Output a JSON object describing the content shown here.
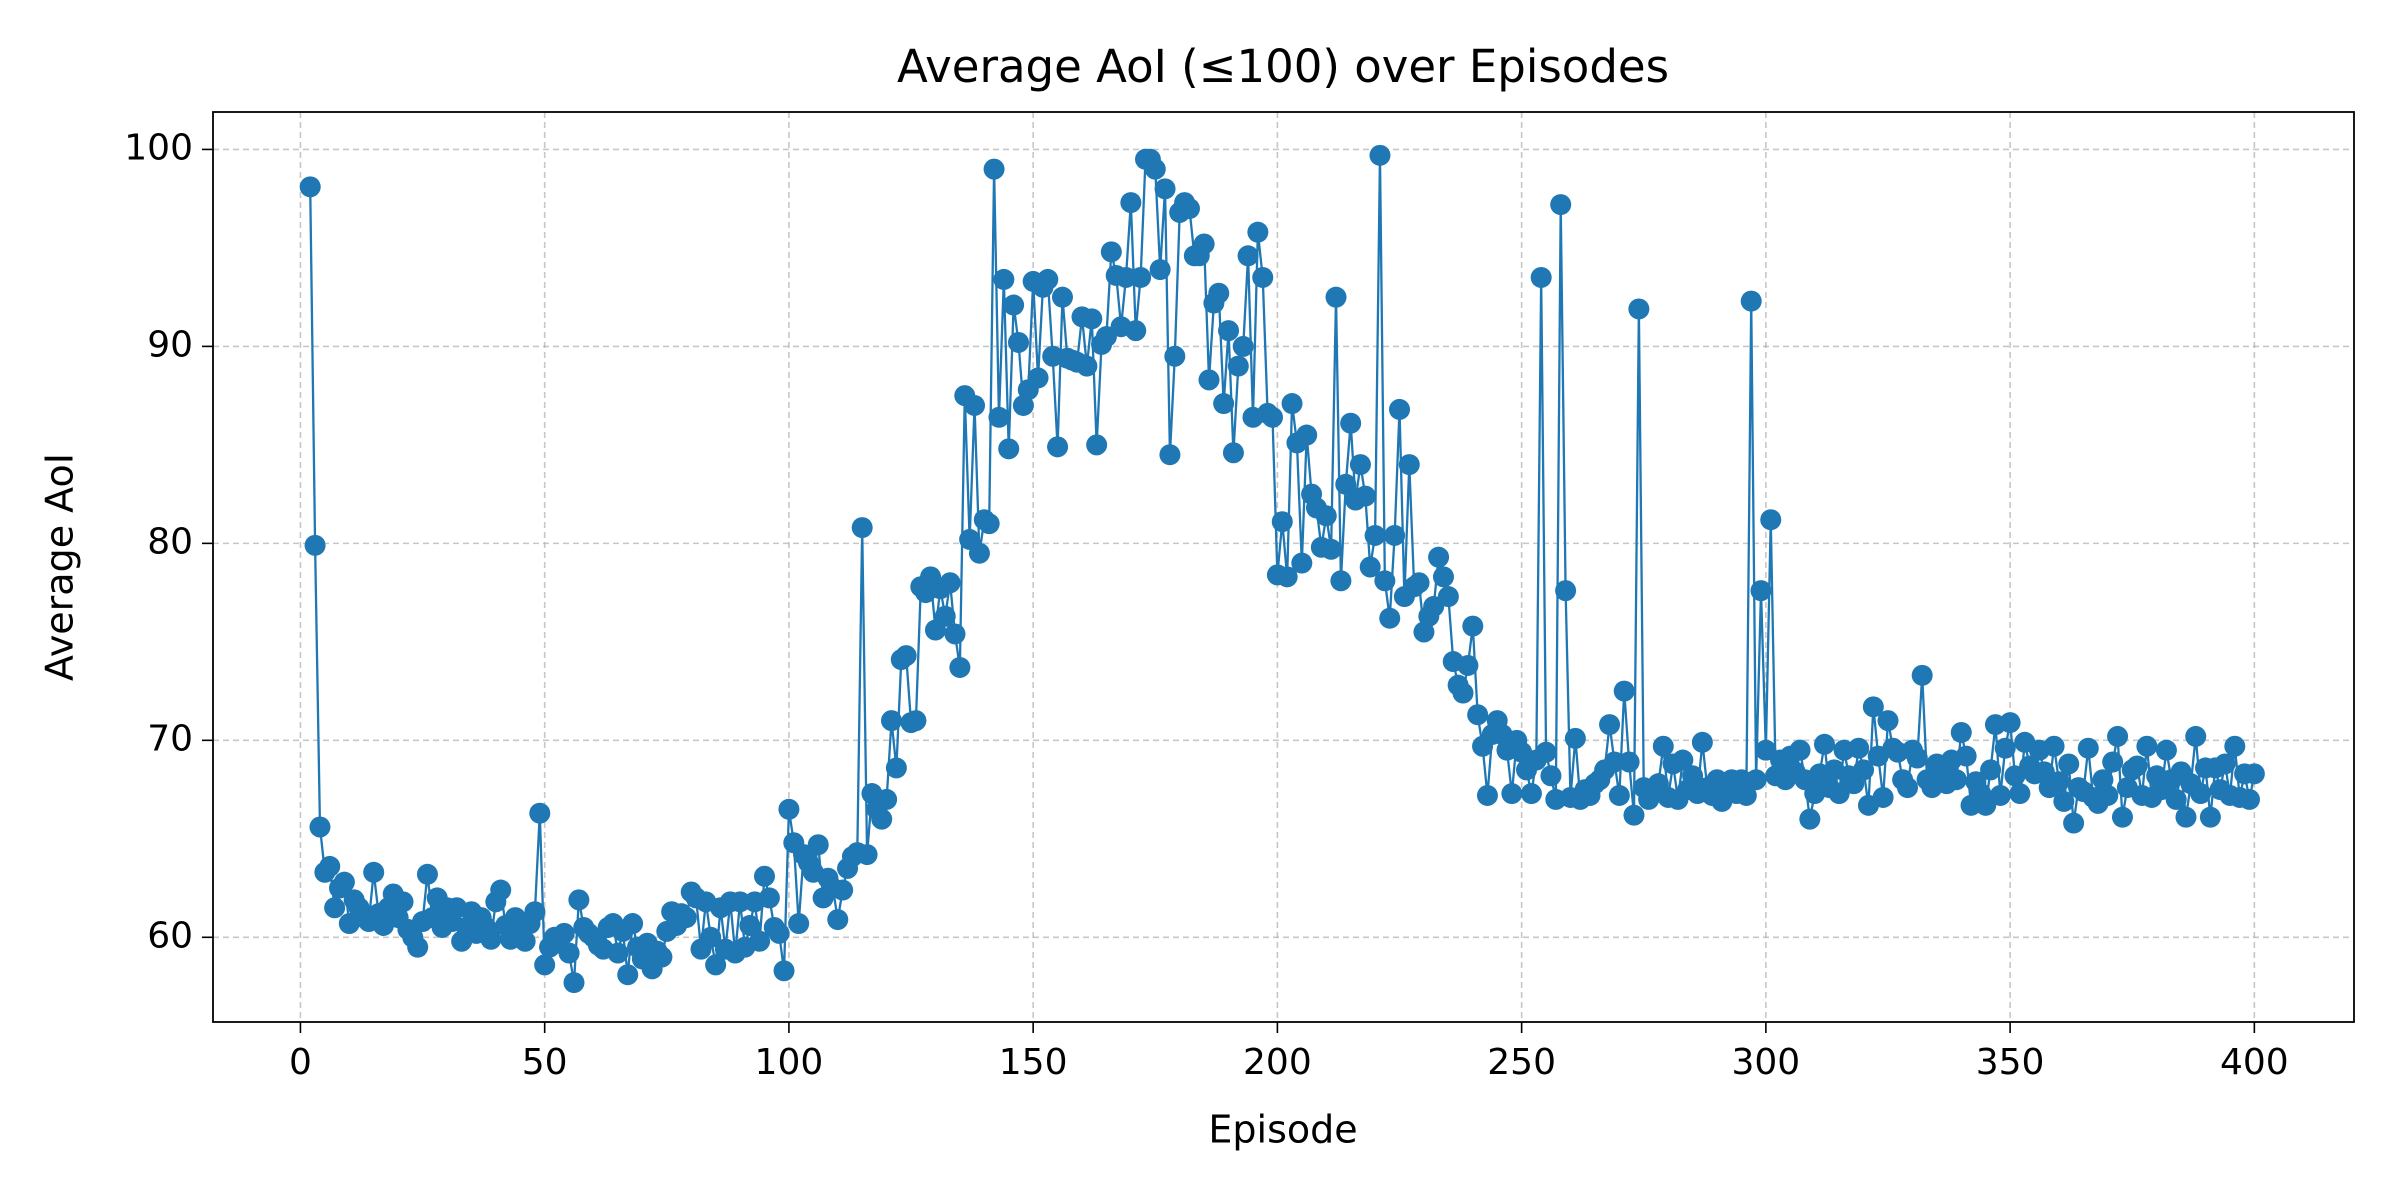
{
  "chart_data": {
    "type": "line",
    "title": "Average AoI (≤100) over Episodes",
    "xlabel": "Episode",
    "ylabel": "Average AoI",
    "color": "#1f77b4",
    "marker": "o",
    "grid": true,
    "xlim": [
      -17.9,
      420.4
    ],
    "xticks": [
      0,
      50,
      100,
      150,
      200,
      250,
      300,
      350,
      400
    ],
    "ylim": [
      55.7,
      101.9
    ],
    "yticks": [
      60,
      70,
      80,
      90,
      100
    ],
    "x": [
      2,
      3,
      4,
      5,
      6,
      7,
      8,
      9,
      10,
      11,
      12,
      13,
      14,
      15,
      16,
      17,
      18,
      19,
      20,
      21,
      22,
      23,
      24,
      25,
      26,
      27,
      28,
      29,
      30,
      31,
      32,
      33,
      34,
      35,
      36,
      37,
      38,
      39,
      40,
      41,
      42,
      43,
      44,
      45,
      46,
      47,
      48,
      49,
      50,
      51,
      52,
      53,
      54,
      55,
      56,
      57,
      58,
      59,
      60,
      61,
      62,
      63,
      64,
      65,
      66,
      67,
      68,
      69,
      70,
      71,
      72,
      73,
      74,
      75,
      76,
      77,
      78,
      79,
      80,
      81,
      82,
      83,
      84,
      85,
      86,
      87,
      88,
      89,
      90,
      91,
      92,
      93,
      94,
      95,
      96,
      97,
      98,
      99,
      100,
      101,
      102,
      103,
      104,
      105,
      106,
      107,
      108,
      109,
      110,
      111,
      112,
      113,
      114,
      115,
      116,
      117,
      118,
      119,
      120,
      121,
      122,
      123,
      124,
      125,
      126,
      127,
      128,
      129,
      130,
      131,
      132,
      133,
      134,
      135,
      136,
      137,
      138,
      139,
      140,
      141,
      142,
      143,
      144,
      145,
      146,
      147,
      148,
      149,
      150,
      151,
      152,
      153,
      154,
      155,
      156,
      157,
      158,
      159,
      160,
      161,
      162,
      163,
      164,
      165,
      166,
      167,
      168,
      169,
      170,
      171,
      172,
      173,
      174,
      175,
      176,
      177,
      178,
      179,
      180,
      181,
      182,
      183,
      184,
      185,
      186,
      187,
      188,
      189,
      190,
      191,
      192,
      193,
      194,
      195,
      196,
      197,
      198,
      199,
      200,
      201,
      202,
      203,
      204,
      205,
      206,
      207,
      208,
      209,
      210,
      211,
      212,
      213,
      214,
      215,
      216,
      217,
      218,
      219,
      220,
      221,
      222,
      223,
      224,
      225,
      226,
      227,
      228,
      229,
      230,
      231,
      232,
      233,
      234,
      235,
      236,
      237,
      238,
      239,
      240,
      241,
      242,
      243,
      244,
      245,
      246,
      247,
      248,
      249,
      250,
      251,
      252,
      253,
      254,
      255,
      256,
      257,
      258,
      259,
      260,
      261,
      262,
      263,
      264,
      265,
      266,
      267,
      268,
      269,
      270,
      271,
      272,
      273,
      274,
      275,
      276,
      277,
      278,
      279,
      280,
      281,
      282,
      283,
      284,
      285,
      286,
      287,
      288,
      289,
      290,
      291,
      292,
      293,
      294,
      295,
      296,
      297,
      298,
      299,
      300,
      301,
      302,
      303,
      304,
      305,
      306,
      307,
      308,
      309,
      310,
      311,
      312,
      313,
      314,
      315,
      316,
      317,
      318,
      319,
      320,
      321,
      322,
      323,
      324,
      325,
      326,
      327,
      328,
      329,
      330,
      331,
      332,
      333,
      334,
      335,
      336,
      337,
      338,
      339,
      340,
      341,
      342,
      343,
      344,
      345,
      346,
      347,
      348,
      349,
      350,
      351,
      352,
      353,
      354,
      355,
      356,
      357,
      358,
      359,
      360,
      361,
      362,
      363,
      364,
      365,
      366,
      367,
      368,
      369,
      370,
      371,
      372,
      373,
      374,
      375,
      376,
      377,
      378,
      379,
      380,
      381,
      382,
      383,
      384,
      385,
      386,
      387,
      388,
      389,
      390,
      391,
      392,
      393,
      394,
      395,
      396,
      397,
      398,
      399,
      400
    ],
    "values": [
      98.1,
      79.9,
      65.6,
      63.3,
      63.6,
      61.5,
      62.5,
      62.8,
      60.7,
      61.9,
      61.5,
      61.0,
      60.8,
      63.3,
      61.2,
      60.6,
      61.5,
      62.2,
      61.0,
      61.8,
      60.4,
      60.0,
      59.5,
      60.8,
      63.2,
      61.0,
      62.0,
      60.5,
      61.5,
      60.8,
      61.5,
      59.8,
      60.5,
      61.3,
      60.2,
      61.0,
      60.5,
      59.9,
      61.8,
      62.4,
      60.6,
      59.9,
      61.0,
      60.2,
      59.8,
      60.7,
      61.3,
      66.3,
      58.6,
      59.5,
      60.0,
      59.7,
      60.2,
      59.2,
      57.7,
      61.9,
      60.5,
      60.2,
      60.0,
      59.6,
      59.4,
      60.5,
      60.7,
      59.2,
      60.3,
      58.1,
      60.7,
      59.5,
      58.9,
      59.7,
      58.4,
      59.3,
      59.0,
      60.3,
      61.3,
      60.6,
      61.2,
      61.0,
      62.3,
      62.0,
      59.4,
      61.8,
      60.0,
      58.6,
      61.5,
      59.4,
      61.8,
      59.2,
      61.8,
      59.5,
      60.6,
      61.8,
      59.8,
      63.1,
      62.0,
      60.5,
      60.2,
      58.3,
      66.5,
      64.8,
      60.7,
      64.2,
      63.8,
      63.3,
      64.7,
      62.0,
      63.0,
      62.5,
      60.9,
      62.4,
      63.5,
      64.1,
      64.3,
      80.8,
      64.2,
      67.3,
      66.5,
      66.0,
      67.0,
      71.0,
      68.6,
      74.1,
      74.3,
      70.9,
      71.0,
      77.8,
      77.5,
      78.3,
      75.6,
      77.7,
      76.3,
      78.0,
      75.4,
      73.7,
      87.5,
      80.2,
      87.0,
      79.5,
      81.2,
      81.0,
      99.0,
      86.4,
      93.4,
      84.8,
      92.1,
      90.2,
      87.0,
      87.8,
      93.3,
      88.4,
      93.0,
      93.4,
      89.5,
      84.9,
      92.5,
      89.4,
      89.3,
      89.2,
      91.5,
      89.0,
      91.4,
      85.0,
      90.1,
      90.5,
      94.8,
      93.6,
      91.0,
      93.5,
      97.3,
      90.8,
      93.5,
      99.5,
      99.5,
      99.0,
      93.9,
      98.0,
      84.5,
      89.5,
      96.8,
      97.3,
      97.0,
      94.6,
      94.6,
      95.2,
      88.3,
      92.2,
      92.7,
      87.1,
      90.8,
      84.6,
      89.0,
      90.0,
      94.6,
      86.4,
      95.8,
      93.5,
      86.6,
      86.4,
      78.4,
      81.1,
      78.3,
      87.1,
      85.1,
      79.0,
      85.5,
      82.5,
      81.8,
      79.8,
      81.4,
      79.7,
      92.5,
      78.1,
      83.0,
      86.1,
      82.2,
      84.0,
      82.4,
      78.8,
      80.4,
      99.7,
      78.1,
      76.2,
      80.4,
      86.8,
      77.3,
      84.0,
      77.8,
      78.0,
      75.5,
      76.3,
      76.8,
      79.3,
      78.3,
      77.3,
      74.0,
      72.8,
      72.4,
      73.8,
      75.8,
      71.3,
      69.7,
      67.2,
      70.3,
      71.0,
      70.3,
      69.5,
      67.3,
      70.0,
      69.4,
      68.5,
      67.3,
      69.0,
      93.5,
      69.4,
      68.2,
      67.0,
      97.2,
      77.6,
      67.1,
      70.1,
      67.0,
      67.5,
      67.2,
      67.8,
      68.0,
      68.5,
      70.8,
      68.9,
      67.2,
      72.5,
      68.9,
      66.2,
      91.9,
      67.6,
      67.0,
      67.3,
      67.8,
      69.7,
      67.1,
      68.8,
      67.0,
      69.0,
      67.5,
      68.2,
      67.3,
      69.9,
      67.6,
      67.2,
      68.0,
      66.9,
      67.5,
      68.0,
      67.3,
      68.0,
      67.2,
      92.3,
      68.0,
      77.6,
      69.5,
      81.2,
      68.2,
      69.0,
      68.0,
      69.2,
      68.4,
      69.5,
      68.0,
      66.0,
      67.3,
      68.3,
      69.8,
      67.6,
      68.5,
      67.3,
      69.5,
      68.2,
      67.8,
      69.6,
      68.5,
      66.7,
      71.7,
      69.2,
      67.1,
      71.0,
      69.6,
      69.4,
      68.0,
      67.6,
      69.5,
      69.1,
      73.3,
      68.0,
      67.6,
      68.8,
      68.5,
      67.8,
      69.0,
      68.0,
      70.4,
      69.2,
      66.7,
      67.9,
      67.3,
      66.7,
      68.5,
      70.8,
      67.2,
      69.6,
      70.9,
      68.2,
      67.3,
      69.9,
      68.7,
      68.3,
      69.5,
      68.4,
      67.6,
      69.7,
      67.9,
      66.9,
      68.8,
      65.8,
      67.6,
      67.4,
      69.6,
      67.1,
      66.8,
      68.0,
      67.2,
      68.9,
      70.2,
      66.1,
      67.6,
      68.5,
      68.7,
      67.2,
      69.7,
      67.1,
      68.2,
      67.5,
      69.5,
      68.0,
      67.0,
      68.4,
      66.1,
      67.8,
      70.2,
      67.3,
      68.6,
      66.1,
      68.6,
      67.5,
      68.8,
      67.2,
      69.7,
      67.1,
      68.3,
      67.0,
      68.3
    ]
  }
}
